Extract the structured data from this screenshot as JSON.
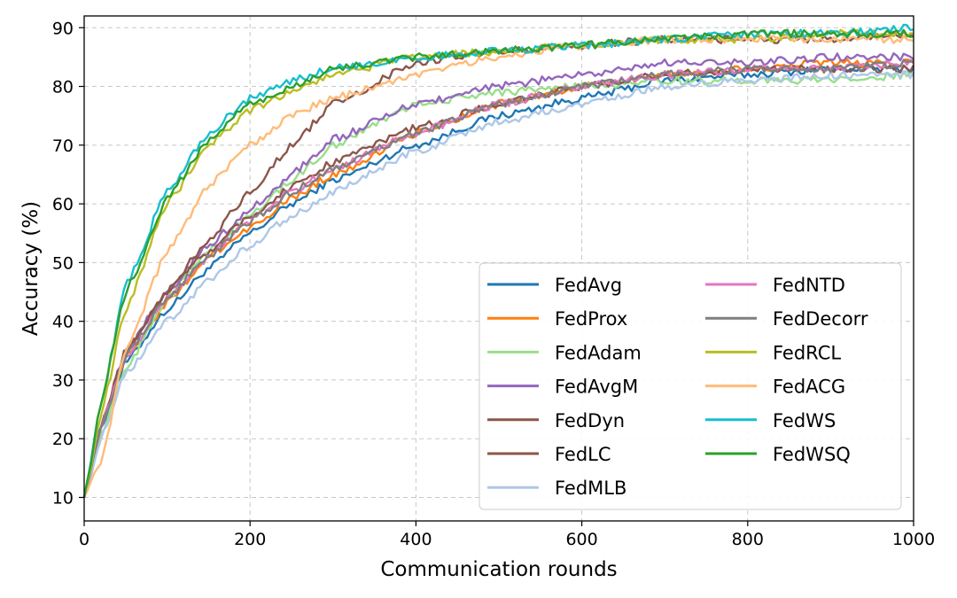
{
  "chart_data": {
    "type": "line",
    "title": "",
    "xlabel": "Communication rounds",
    "ylabel": "Accuracy (%)",
    "xlim": [
      0,
      1000
    ],
    "ylim": [
      6,
      92
    ],
    "xticks": [
      0,
      200,
      400,
      600,
      800,
      1000
    ],
    "yticks": [
      10,
      20,
      30,
      40,
      50,
      60,
      70,
      80,
      90
    ],
    "grid": true,
    "legend_position": "lower-right",
    "legend_columns": 2,
    "x": [
      0,
      20,
      50,
      100,
      150,
      200,
      250,
      300,
      400,
      500,
      600,
      700,
      800,
      900,
      1000
    ],
    "series": [
      {
        "name": "FedAvg",
        "color": "#1f77b4",
        "values": [
          10,
          22,
          33,
          42,
          49,
          55,
          60,
          64,
          70,
          75,
          78,
          81,
          82,
          83,
          83
        ]
      },
      {
        "name": "FedProx",
        "color": "#ff7f0e",
        "values": [
          10,
          22,
          34,
          43,
          51,
          56,
          61,
          65,
          72,
          77,
          80,
          82,
          83,
          84,
          84
        ]
      },
      {
        "name": "FedAdam",
        "color": "#98df8a",
        "values": [
          10,
          21,
          32,
          44,
          52,
          58,
          64,
          70,
          77,
          79,
          80,
          81,
          81,
          81,
          82
        ]
      },
      {
        "name": "FedAvgM",
        "color": "#9467bd",
        "values": [
          10,
          22,
          35,
          45,
          53,
          59,
          65,
          71,
          77,
          80,
          82,
          84,
          84,
          85,
          85
        ]
      },
      {
        "name": "FedDyn",
        "color": "#8c564b",
        "values": [
          10,
          22,
          35,
          45,
          54,
          62,
          70,
          77,
          84,
          86,
          87,
          88,
          88,
          88,
          89
        ]
      },
      {
        "name": "FedLC",
        "color": "#8c564b",
        "values": [
          10,
          22,
          35,
          45,
          52,
          58,
          63,
          67,
          73,
          77,
          80,
          82,
          83,
          83,
          83
        ]
      },
      {
        "name": "FedMLB",
        "color": "#aec7e8",
        "values": [
          10,
          20,
          31,
          40,
          47,
          53,
          58,
          62,
          69,
          74,
          77,
          80,
          81,
          82,
          82
        ]
      },
      {
        "name": "FedNTD",
        "color": "#e377c2",
        "values": [
          10,
          22,
          34,
          44,
          51,
          57,
          62,
          66,
          72,
          77,
          80,
          82,
          83,
          83,
          84
        ]
      },
      {
        "name": "FedDecorr",
        "color": "#7f7f7f",
        "values": [
          10,
          22,
          34,
          44,
          51,
          57,
          62,
          66,
          72,
          77,
          80,
          82,
          83,
          83,
          84
        ]
      },
      {
        "name": "FedRCL",
        "color": "#bcbd22",
        "values": [
          10,
          24,
          42,
          60,
          70,
          76,
          79,
          82,
          85,
          86,
          87,
          88,
          88,
          89,
          89
        ]
      },
      {
        "name": "FedACG",
        "color": "#ffbb78",
        "values": [
          10,
          16,
          35,
          52,
          63,
          70,
          75,
          78,
          82,
          85,
          87,
          88,
          88,
          88,
          88
        ]
      },
      {
        "name": "FedWS",
        "color": "#17becf",
        "values": [
          10,
          26,
          46,
          62,
          72,
          78,
          81,
          83,
          85,
          86,
          87,
          88,
          89,
          89,
          90
        ]
      },
      {
        "name": "FedWSQ",
        "color": "#2ca02c",
        "values": [
          10,
          26,
          45,
          61,
          71,
          77,
          80,
          83,
          85,
          86,
          87,
          88,
          89,
          89,
          89
        ]
      }
    ]
  }
}
